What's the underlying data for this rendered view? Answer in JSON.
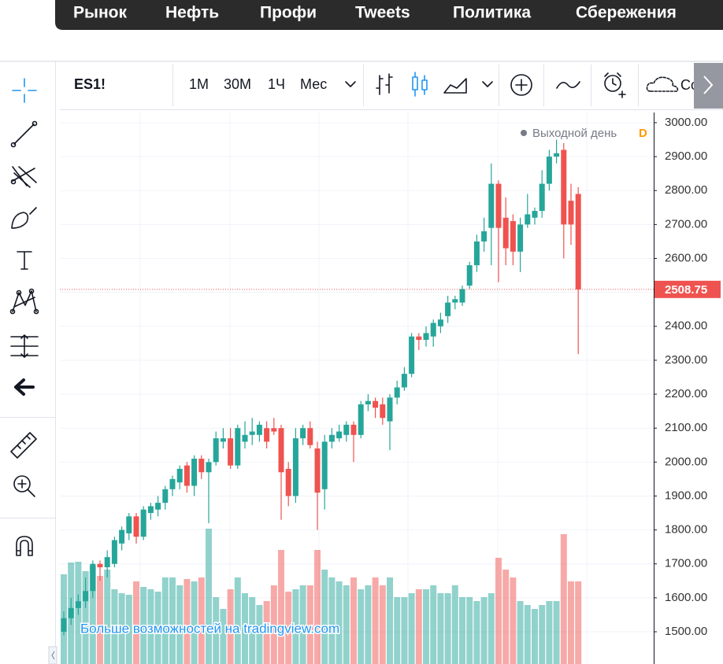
{
  "nav": {
    "items": [
      "Рынок",
      "Нефть",
      "Профи",
      "Tweets",
      "Политика",
      "Сбережения"
    ]
  },
  "toolbar": {
    "symbol": "ES1!",
    "intervals": [
      "1M",
      "30M",
      "1Ч",
      "Мес"
    ],
    "active_interval": 3,
    "save": "Сохра"
  },
  "chart_data": {
    "type": "candlestick",
    "legend": "Выходной день",
    "legend_interval": "D",
    "watermark": "Больше возможностей на tradingview.com",
    "up_color": "#26a69a",
    "down_color": "#ef5350",
    "last_price": 2508.75,
    "ylim": [
      1405,
      3030
    ],
    "yticks": [
      {
        "value": 1500,
        "label": "1500.00"
      },
      {
        "value": 1600,
        "label": "1600.00"
      },
      {
        "value": 1700,
        "label": "1700.00"
      },
      {
        "value": 1800,
        "label": "1800.00"
      },
      {
        "value": 1900,
        "label": "1900.00"
      },
      {
        "value": 2000,
        "label": "2000.00"
      },
      {
        "value": 2100,
        "label": "2100.00"
      },
      {
        "value": 2200,
        "label": "2200.00"
      },
      {
        "value": 2300,
        "label": "2300.00"
      },
      {
        "value": 2400,
        "label": "2400.00"
      },
      {
        "value": 2500,
        "label": "2500.00"
      },
      {
        "value": 2600,
        "label": "2600.00"
      },
      {
        "value": 2700,
        "label": "2700.00"
      },
      {
        "value": 2800,
        "label": "2800.00"
      },
      {
        "value": 2900,
        "label": "2900.00"
      },
      {
        "value": 3000,
        "label": "3000.00"
      }
    ],
    "grid": true,
    "open": [
      1500,
      1540,
      1570,
      1590,
      1620,
      1700,
      1690,
      1700,
      1760,
      1790,
      1840,
      1780,
      1850,
      1860,
      1880,
      1920,
      1940,
      1990,
      1930,
      2010,
      1970,
      2000,
      2060,
      2070,
      1990,
      2060,
      2080,
      2080,
      2100,
      2100,
      2100,
      1980,
      1900,
      2070,
      2100,
      2040,
      1920,
      2060,
      2070,
      2080,
      2110,
      2080,
      2170,
      2180,
      2170,
      2120,
      2190,
      2220,
      2260,
      2370,
      2360,
      2370,
      2400,
      2430,
      2470,
      2470,
      2520,
      2580,
      2650,
      2690,
      2820,
      2720,
      2710,
      2620,
      2700,
      2720,
      2740,
      2820,
      2900,
      2920,
      2770,
      2790
    ],
    "high": [
      1560,
      1600,
      1610,
      1660,
      1710,
      1710,
      1740,
      1780,
      1810,
      1850,
      1850,
      1870,
      1880,
      1900,
      1930,
      1960,
      1990,
      2000,
      2020,
      2020,
      2010,
      2090,
      2100,
      2100,
      2110,
      2120,
      2130,
      2120,
      2120,
      2130,
      2110,
      2000,
      2100,
      2110,
      2120,
      2060,
      2080,
      2100,
      2110,
      2120,
      2120,
      2180,
      2200,
      2190,
      2190,
      2200,
      2240,
      2280,
      2380,
      2380,
      2400,
      2420,
      2440,
      2490,
      2490,
      2520,
      2590,
      2670,
      2720,
      2880,
      2830,
      2780,
      2730,
      2720,
      2790,
      2750,
      2860,
      2920,
      2950,
      2940,
      2820,
      2810
    ],
    "low": [
      1490,
      1520,
      1550,
      1570,
      1600,
      1650,
      1660,
      1690,
      1740,
      1770,
      1760,
      1770,
      1830,
      1840,
      1860,
      1900,
      1920,
      1910,
      1900,
      1950,
      1820,
      1990,
      2040,
      1980,
      1980,
      2040,
      2050,
      2060,
      2040,
      2080,
      1830,
      1870,
      1880,
      2050,
      2040,
      1800,
      1860,
      2040,
      2060,
      2060,
      2000,
      2070,
      2150,
      2130,
      2110,
      2035,
      2170,
      2210,
      2250,
      2330,
      2340,
      2340,
      2380,
      2410,
      2450,
      2460,
      2510,
      2560,
      2620,
      2580,
      2530,
      2580,
      2580,
      2560,
      2690,
      2700,
      2720,
      2800,
      2880,
      2600,
      2640,
      2318
    ],
    "close": [
      1540,
      1570,
      1590,
      1620,
      1700,
      1690,
      1720,
      1770,
      1800,
      1840,
      1780,
      1860,
      1870,
      1880,
      1920,
      1950,
      1980,
      1930,
      2010,
      1970,
      2000,
      2070,
      2070,
      1990,
      2100,
      2080,
      2090,
      2110,
      2060,
      2090,
      1970,
      1900,
      2070,
      2100,
      2050,
      1910,
      2060,
      2080,
      2090,
      2110,
      2080,
      2170,
      2180,
      2160,
      2130,
      2190,
      2220,
      2260,
      2370,
      2360,
      2380,
      2410,
      2420,
      2470,
      2480,
      2510,
      2580,
      2650,
      2680,
      2820,
      2690,
      2630,
      2620,
      2700,
      2730,
      2740,
      2820,
      2900,
      2910,
      2700,
      2700,
      2508.75
    ],
    "volume": [
      114,
      129,
      130,
      118,
      125,
      112,
      120,
      95,
      90,
      88,
      105,
      98,
      95,
      92,
      110,
      110,
      100,
      108,
      105,
      110,
      172,
      85,
      70,
      95,
      110,
      90,
      85,
      75,
      80,
      100,
      145,
      92,
      95,
      100,
      100,
      145,
      120,
      110,
      105,
      100,
      110,
      95,
      100,
      110,
      100,
      110,
      85,
      85,
      90,
      95,
      95,
      100,
      90,
      90,
      100,
      85,
      85,
      80,
      85,
      90,
      135,
      120,
      110,
      80,
      75,
      70,
      75,
      80,
      80,
      165,
      105,
      105
    ]
  }
}
